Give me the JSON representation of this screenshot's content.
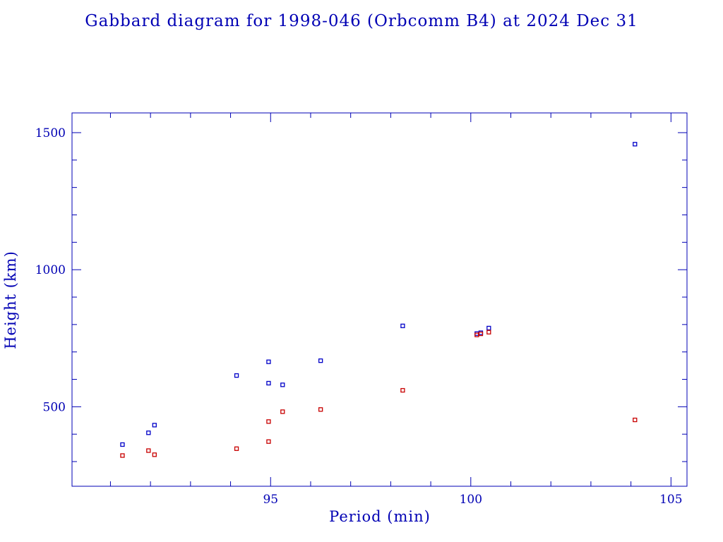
{
  "chart_data": {
    "type": "scatter",
    "title": "Gabbard diagram for 1998-046 (Orbcomm B4) at 2024 Dec 31",
    "xlabel": "Period (min)",
    "ylabel": "Height (km)",
    "xlim": [
      90.04,
      105.4
    ],
    "ylim": [
      210,
      1572
    ],
    "x_ticks": [
      95,
      100,
      105
    ],
    "x_tick_labels": [
      "95",
      "100",
      "105"
    ],
    "x_minor_step": 1,
    "y_ticks": [
      500,
      1000,
      1500
    ],
    "y_tick_labels": [
      "500",
      "1000",
      "1500"
    ],
    "y_minor_step": 100,
    "grid": false,
    "legend": "none",
    "series": [
      {
        "color": "#0000c8",
        "points": [
          {
            "x": 91.3,
            "y": 362
          },
          {
            "x": 91.95,
            "y": 405
          },
          {
            "x": 92.1,
            "y": 433
          },
          {
            "x": 94.15,
            "y": 614
          },
          {
            "x": 94.95,
            "y": 664
          },
          {
            "x": 94.95,
            "y": 586
          },
          {
            "x": 95.3,
            "y": 580
          },
          {
            "x": 96.25,
            "y": 668
          },
          {
            "x": 98.3,
            "y": 795
          },
          {
            "x": 100.15,
            "y": 767
          },
          {
            "x": 100.25,
            "y": 770
          },
          {
            "x": 100.45,
            "y": 787
          },
          {
            "x": 104.1,
            "y": 1458
          }
        ]
      },
      {
        "color": "#c80000",
        "points": [
          {
            "x": 91.3,
            "y": 322
          },
          {
            "x": 91.95,
            "y": 340
          },
          {
            "x": 92.1,
            "y": 325
          },
          {
            "x": 94.15,
            "y": 347
          },
          {
            "x": 94.95,
            "y": 446
          },
          {
            "x": 94.95,
            "y": 373
          },
          {
            "x": 95.3,
            "y": 482
          },
          {
            "x": 96.25,
            "y": 490
          },
          {
            "x": 98.3,
            "y": 560
          },
          {
            "x": 100.15,
            "y": 762
          },
          {
            "x": 100.25,
            "y": 766
          },
          {
            "x": 100.45,
            "y": 772
          },
          {
            "x": 104.1,
            "y": 452
          }
        ]
      }
    ]
  }
}
